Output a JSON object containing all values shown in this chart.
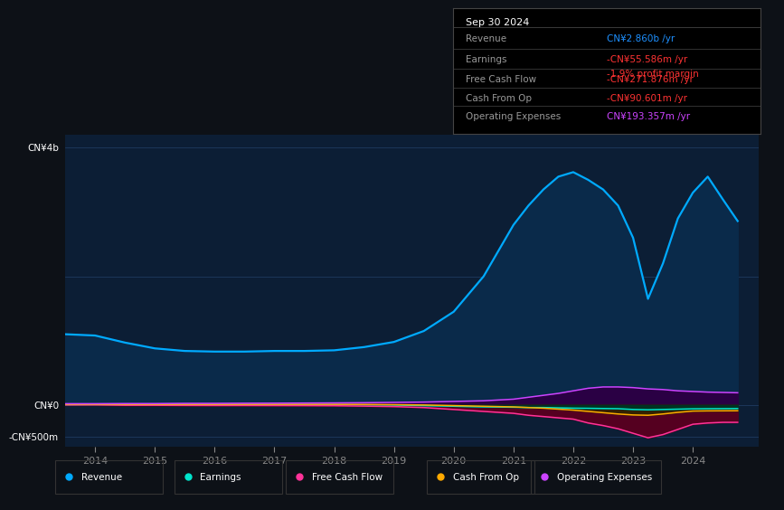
{
  "bg_color": "#0d1117",
  "plot_bg_color": "#0c1e35",
  "grid_color": "#1e3a5f",
  "title_box": {
    "date": "Sep 30 2024",
    "rows": [
      {
        "label": "Revenue",
        "value": "CN¥2.860b",
        "value_color": "#1e90ff",
        "suffix": " /yr",
        "extra": null,
        "extra_color": null
      },
      {
        "label": "Earnings",
        "value": "-CN¥55.586m",
        "value_color": "#ff3333",
        "suffix": " /yr",
        "extra": "-1.9% profit margin",
        "extra_color": "#ff3333"
      },
      {
        "label": "Free Cash Flow",
        "value": "-CN¥271.876m",
        "value_color": "#ff3333",
        "suffix": " /yr",
        "extra": null,
        "extra_color": null
      },
      {
        "label": "Cash From Op",
        "value": "-CN¥90.601m",
        "value_color": "#ff3333",
        "suffix": " /yr",
        "extra": null,
        "extra_color": null
      },
      {
        "label": "Operating Expenses",
        "value": "CN¥193.357m",
        "value_color": "#cc44ff",
        "suffix": " /yr",
        "extra": null,
        "extra_color": null
      }
    ]
  },
  "years": [
    2013.5,
    2014.0,
    2014.5,
    2015.0,
    2015.5,
    2016.0,
    2016.5,
    2017.0,
    2017.5,
    2018.0,
    2018.5,
    2019.0,
    2019.5,
    2020.0,
    2020.5,
    2021.0,
    2021.25,
    2021.5,
    2021.75,
    2022.0,
    2022.25,
    2022.5,
    2022.75,
    2023.0,
    2023.25,
    2023.5,
    2023.75,
    2024.0,
    2024.25,
    2024.5,
    2024.75
  ],
  "revenue": [
    1.1,
    1.08,
    0.97,
    0.88,
    0.84,
    0.83,
    0.83,
    0.84,
    0.84,
    0.85,
    0.9,
    0.98,
    1.15,
    1.45,
    2.0,
    2.8,
    3.1,
    3.35,
    3.55,
    3.62,
    3.5,
    3.35,
    3.1,
    2.6,
    1.65,
    2.2,
    2.9,
    3.3,
    3.55,
    3.2,
    2.86
  ],
  "earnings": [
    0.005,
    0.008,
    0.01,
    0.01,
    0.008,
    0.007,
    0.006,
    0.005,
    0.005,
    0.005,
    0.003,
    0.0,
    -0.01,
    -0.02,
    -0.03,
    -0.035,
    -0.04,
    -0.04,
    -0.045,
    -0.05,
    -0.052,
    -0.055,
    -0.058,
    -0.07,
    -0.075,
    -0.07,
    -0.065,
    -0.06,
    -0.058,
    -0.057,
    -0.056
  ],
  "free_cash_flow": [
    0.0,
    0.0,
    -0.005,
    -0.005,
    -0.007,
    -0.008,
    -0.008,
    -0.009,
    -0.01,
    -0.012,
    -0.018,
    -0.025,
    -0.04,
    -0.07,
    -0.1,
    -0.13,
    -0.16,
    -0.18,
    -0.2,
    -0.22,
    -0.28,
    -0.32,
    -0.37,
    -0.44,
    -0.51,
    -0.46,
    -0.38,
    -0.3,
    -0.28,
    -0.27,
    -0.27
  ],
  "cash_from_op": [
    0.01,
    0.01,
    0.01,
    0.01,
    0.01,
    0.01,
    0.01,
    0.01,
    0.01,
    0.01,
    0.008,
    0.005,
    0.0,
    -0.01,
    -0.02,
    -0.03,
    -0.04,
    -0.05,
    -0.065,
    -0.08,
    -0.1,
    -0.12,
    -0.14,
    -0.155,
    -0.16,
    -0.14,
    -0.115,
    -0.095,
    -0.092,
    -0.091,
    -0.09
  ],
  "operating_expenses": [
    0.02,
    0.02,
    0.022,
    0.022,
    0.025,
    0.025,
    0.027,
    0.028,
    0.03,
    0.032,
    0.035,
    0.04,
    0.045,
    0.055,
    0.065,
    0.09,
    0.12,
    0.15,
    0.18,
    0.22,
    0.26,
    0.28,
    0.28,
    0.27,
    0.25,
    0.24,
    0.22,
    0.21,
    0.2,
    0.195,
    0.19
  ],
  "revenue_color": "#00aaff",
  "earnings_color": "#00e5cc",
  "free_cash_flow_color": "#ff3399",
  "cash_from_op_color": "#ffaa00",
  "operating_expenses_color": "#cc44ff",
  "revenue_fill": "#0a2a4a",
  "earnings_fill": "#003322",
  "free_cash_flow_fill": "#550020",
  "cash_from_op_fill": "#332200",
  "operating_expenses_fill": "#2a0044",
  "y_label_4b": "CN¥4b",
  "y_label_0": "CN¥0",
  "y_label_neg500m": "-CN¥500m",
  "x_ticks": [
    2014,
    2015,
    2016,
    2017,
    2018,
    2019,
    2020,
    2021,
    2022,
    2023,
    2024
  ],
  "legend_items": [
    {
      "label": "Revenue",
      "color": "#00aaff"
    },
    {
      "label": "Earnings",
      "color": "#00e5cc"
    },
    {
      "label": "Free Cash Flow",
      "color": "#ff3399"
    },
    {
      "label": "Cash From Op",
      "color": "#ffaa00"
    },
    {
      "label": "Operating Expenses",
      "color": "#cc44ff"
    }
  ]
}
